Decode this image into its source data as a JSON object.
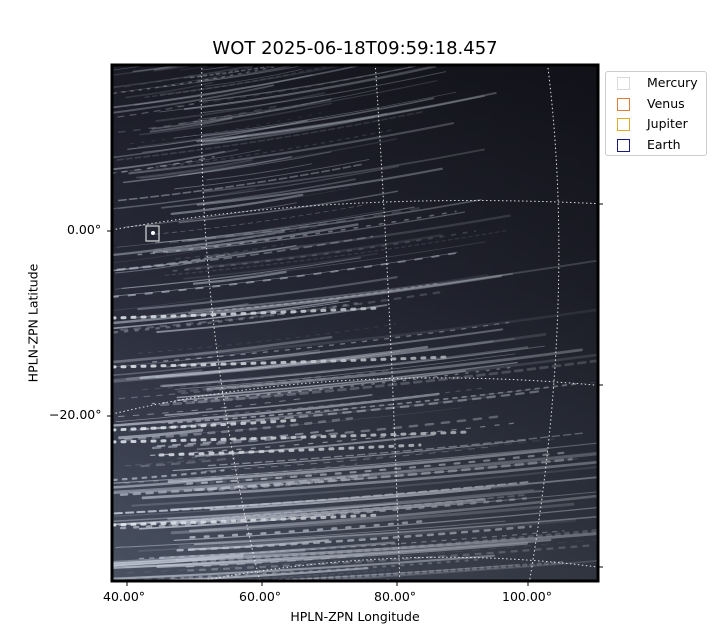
{
  "title": "WOT 2025-06-18T09:59:18.457",
  "axes": {
    "xlabel": "HPLN-ZPN Longitude",
    "ylabel": "HPLN-ZPN Latitude",
    "xticks": [
      "40.00°",
      "60.00°",
      "80.00°",
      "100.00°"
    ],
    "yticks": [
      "0.00°",
      "−20.00°"
    ]
  },
  "legend": [
    {
      "label": "Mercury",
      "color": "#d9d9d9"
    },
    {
      "label": "Venus",
      "color": "#e07b39"
    },
    {
      "label": "Jupiter",
      "color": "#e0a92a"
    },
    {
      "label": "Earth",
      "color": "#1a1a7a"
    }
  ],
  "image": {
    "background": "#1c1d28",
    "streak_color": "#c8cfdc"
  }
}
